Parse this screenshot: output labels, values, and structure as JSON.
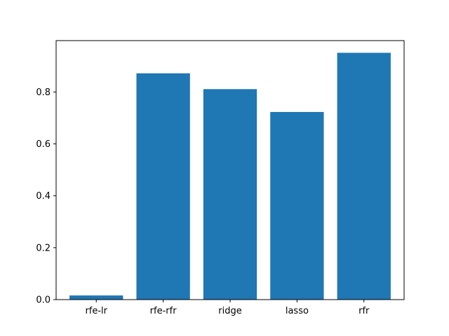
{
  "chart_data": {
    "type": "bar",
    "categories": [
      "rfe-lr",
      "rfe-rfr",
      "ridge",
      "lasso",
      "rfr"
    ],
    "values": [
      0.016,
      0.872,
      0.811,
      0.723,
      0.951
    ],
    "title": "",
    "xlabel": "",
    "ylabel": "",
    "ylim": [
      0,
      0.998
    ],
    "yticks": [
      0.0,
      0.2,
      0.4,
      0.6,
      0.8
    ],
    "ytick_labels": [
      "0.0",
      "0.2",
      "0.4",
      "0.6",
      "0.8"
    ],
    "grid": false,
    "legend": "none",
    "bar_color": "#1f77b4"
  }
}
